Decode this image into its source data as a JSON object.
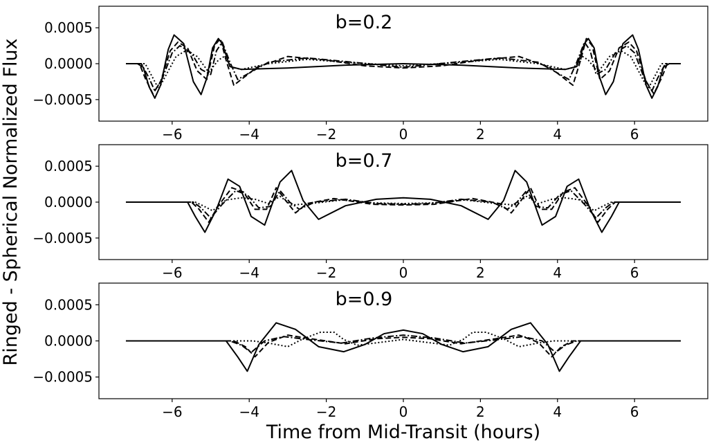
{
  "figure": {
    "ylabel": "Ringed - Spherical Normalized Flux",
    "xlabel": "Time from Mid-Transit (hours)"
  },
  "chart_data": [
    {
      "type": "line",
      "title": "b=0.2",
      "xlim": [
        -7.9,
        7.9
      ],
      "ylim": [
        -0.0008,
        0.0008
      ],
      "xticks": [
        "−6",
        "−4",
        "−2",
        "0",
        "2",
        "4",
        "6"
      ],
      "xtick_values": [
        -6,
        -4,
        -2,
        0,
        2,
        4,
        6
      ],
      "yticks": [
        "0.0005",
        "0.0000",
        "−0.0005"
      ],
      "ytick_values": [
        0.0005,
        0,
        -0.0005
      ],
      "line_color": "#000000",
      "series": [
        {
          "style": "solid",
          "x": [
            -7.2,
            -6.9,
            -6.75,
            -6.6,
            -6.45,
            -6.3,
            -6.1,
            -5.95,
            -5.7,
            -5.45,
            -5.25,
            -5.1,
            -4.95,
            -4.8,
            -4.7,
            -4.5,
            -4.2,
            -3.0,
            -1.5,
            0,
            1.5,
            3.0,
            4.2,
            4.5,
            4.7,
            4.8,
            4.95,
            5.1,
            5.25,
            5.45,
            5.7,
            5.95,
            6.1,
            6.3,
            6.45,
            6.6,
            6.75,
            6.9,
            7.2
          ],
          "y": [
            0,
            0,
            -5e-05,
            -0.00032,
            -0.00048,
            -0.0003,
            0.0002,
            0.0004,
            0.00028,
            -0.00025,
            -0.00043,
            -0.0002,
            0.00022,
            0.00035,
            0.00028,
            -4e-05,
            -8e-05,
            -6e-05,
            -2e-05,
            0,
            -2e-05,
            -6e-05,
            -8e-05,
            -4e-05,
            0.00028,
            0.00035,
            0.00022,
            -0.0002,
            -0.00043,
            -0.00025,
            0.00028,
            0.0004,
            0.0002,
            -0.0003,
            -0.00048,
            -0.00032,
            -5e-05,
            0,
            0
          ]
        },
        {
          "style": "dashed",
          "x": [
            -7.2,
            -6.85,
            -6.7,
            -6.5,
            -6.3,
            -6.05,
            -5.85,
            -5.6,
            -5.35,
            -5.1,
            -4.9,
            -4.75,
            -4.6,
            -4.4,
            -3.8,
            -3.0,
            -2.0,
            -1.0,
            0,
            1.0,
            2.0,
            3.0,
            3.8,
            4.4,
            4.6,
            4.75,
            4.9,
            5.1,
            5.35,
            5.6,
            5.85,
            6.05,
            6.3,
            6.5,
            6.7,
            6.85,
            7.2
          ],
          "y": [
            0,
            0,
            -0.0002,
            -0.00042,
            -0.00025,
            0.00018,
            0.0003,
            0.00022,
            -0.0001,
            -0.00022,
            0.00025,
            0.00035,
            5e-05,
            -0.0003,
            -5e-05,
            0.0001,
            5e-05,
            -3e-05,
            -6e-05,
            -3e-05,
            5e-05,
            0.0001,
            -5e-05,
            -0.0003,
            5e-05,
            0.00035,
            0.00025,
            -0.00022,
            -0.0001,
            0.00022,
            0.0003,
            0.00018,
            -0.00025,
            -0.00042,
            -0.0002,
            0,
            0
          ]
        },
        {
          "style": "dashdot",
          "x": [
            -7.2,
            -6.8,
            -6.6,
            -6.45,
            -6.25,
            -6.0,
            -5.8,
            -5.5,
            -5.25,
            -5.0,
            -4.85,
            -4.7,
            -4.5,
            -4.3,
            -3.5,
            -2.5,
            -1.5,
            0,
            1.5,
            2.5,
            3.5,
            4.3,
            4.5,
            4.7,
            4.85,
            5.0,
            5.25,
            5.5,
            5.8,
            6.0,
            6.25,
            6.45,
            6.6,
            6.8,
            7.2
          ],
          "y": [
            0,
            0,
            -0.0002,
            -0.00038,
            -0.0002,
            0.00015,
            0.00025,
            0.00015,
            -8e-05,
            -0.00015,
            0.00018,
            0.0003,
            2e-05,
            -0.00022,
            2e-05,
            8e-05,
            3e-05,
            -5e-05,
            3e-05,
            8e-05,
            2e-05,
            -0.00022,
            2e-05,
            0.0003,
            0.00018,
            -0.00015,
            -8e-05,
            0.00015,
            0.00025,
            0.00015,
            -0.0002,
            -0.00038,
            -0.0002,
            0,
            0
          ]
        },
        {
          "style": "dotted",
          "x": [
            -7.2,
            -6.7,
            -6.55,
            -6.35,
            -6.15,
            -5.9,
            -5.65,
            -5.35,
            -5.05,
            -4.8,
            -4.65,
            -4.45,
            -4.2,
            -3.5,
            -2.5,
            -1.5,
            0,
            1.5,
            2.5,
            3.5,
            4.2,
            4.45,
            4.65,
            4.8,
            5.05,
            5.35,
            5.65,
            5.9,
            6.15,
            6.35,
            6.55,
            6.7,
            7.2
          ],
          "y": [
            0,
            0,
            -0.00015,
            -0.00035,
            -0.00015,
            0.0001,
            0.00018,
            0.0001,
            -0.00012,
            5e-05,
            0.0001,
            -5e-05,
            -8e-05,
            0,
            6e-05,
            2e-05,
            -3e-05,
            2e-05,
            6e-05,
            0,
            -8e-05,
            -5e-05,
            0.0001,
            5e-05,
            -0.00012,
            0.0001,
            0.00018,
            0.0001,
            -0.00015,
            -0.00035,
            -0.00015,
            0,
            0
          ]
        }
      ]
    },
    {
      "type": "line",
      "title": "b=0.7",
      "xlim": [
        -7.9,
        7.9
      ],
      "ylim": [
        -0.0008,
        0.0008
      ],
      "xticks": [
        "−6",
        "−4",
        "−2",
        "0",
        "2",
        "4",
        "6"
      ],
      "xtick_values": [
        -6,
        -4,
        -2,
        0,
        2,
        4,
        6
      ],
      "yticks": [
        "0.0005",
        "0.0000",
        "−0.0005"
      ],
      "ytick_values": [
        0.0005,
        0,
        -0.0005
      ],
      "line_color": "#000000",
      "series": [
        {
          "style": "solid",
          "x": [
            -7.2,
            -5.6,
            -5.4,
            -5.15,
            -4.85,
            -4.55,
            -4.25,
            -3.95,
            -3.6,
            -3.2,
            -2.9,
            -2.6,
            -2.2,
            -1.5,
            -0.7,
            0,
            0.7,
            1.5,
            2.2,
            2.6,
            2.9,
            3.2,
            3.6,
            3.95,
            4.25,
            4.55,
            4.85,
            5.15,
            5.4,
            5.6,
            7.2
          ],
          "y": [
            0,
            0,
            -0.0002,
            -0.00042,
            -0.0001,
            0.00032,
            0.00022,
            -0.0002,
            -0.00032,
            0.00028,
            0.00044,
            2e-05,
            -0.00024,
            -5e-05,
            4e-05,
            6e-05,
            4e-05,
            -5e-05,
            -0.00024,
            2e-05,
            0.00044,
            0.00028,
            -0.00032,
            -0.0002,
            0.00022,
            0.00032,
            -0.0001,
            -0.00042,
            -0.0002,
            0,
            0
          ]
        },
        {
          "style": "dashed",
          "x": [
            -7.2,
            -5.5,
            -5.3,
            -5.05,
            -4.8,
            -4.45,
            -4.15,
            -3.85,
            -3.55,
            -3.3,
            -3.05,
            -2.8,
            -2.5,
            -1.8,
            -0.8,
            0,
            0.8,
            1.8,
            2.5,
            2.8,
            3.05,
            3.3,
            3.55,
            3.85,
            4.15,
            4.45,
            4.8,
            5.05,
            5.3,
            5.5,
            7.2
          ],
          "y": [
            0,
            0,
            -0.0001,
            -0.00028,
            -5e-05,
            0.0002,
            0.00014,
            -0.0001,
            -0.0001,
            0.0002,
            2e-05,
            -0.00015,
            -2e-05,
            5e-05,
            -3e-05,
            -4e-05,
            -3e-05,
            5e-05,
            -2e-05,
            -0.00015,
            2e-05,
            0.0002,
            -0.0001,
            -0.0001,
            0.00014,
            0.0002,
            -5e-05,
            -0.00028,
            -0.0001,
            0,
            0
          ]
        },
        {
          "style": "dashdot",
          "x": [
            -7.2,
            -5.45,
            -5.25,
            -5.0,
            -4.7,
            -4.35,
            -4.05,
            -3.75,
            -3.45,
            -3.2,
            -2.95,
            -2.7,
            -2.3,
            -1.5,
            -0.7,
            0,
            0.7,
            1.5,
            2.3,
            2.7,
            2.95,
            3.2,
            3.45,
            3.75,
            4.05,
            4.35,
            4.7,
            5.0,
            5.25,
            5.45,
            7.2
          ],
          "y": [
            0,
            0,
            -8e-05,
            -0.00022,
            -3e-05,
            0.00016,
            0.0001,
            -8e-05,
            -6e-05,
            0.00016,
            0,
            -0.0001,
            0,
            4e-05,
            -2e-05,
            -3e-05,
            -2e-05,
            4e-05,
            0,
            -0.0001,
            0,
            0.00016,
            -6e-05,
            -8e-05,
            0.0001,
            0.00016,
            -3e-05,
            -0.00022,
            -8e-05,
            0,
            0
          ]
        },
        {
          "style": "dotted",
          "x": [
            -7.2,
            -5.4,
            -5.2,
            -4.95,
            -4.6,
            -4.2,
            -3.85,
            -3.5,
            -3.2,
            -2.9,
            -2.4,
            -1.6,
            -0.8,
            0,
            0.8,
            1.6,
            2.4,
            2.9,
            3.2,
            3.5,
            3.85,
            4.2,
            4.6,
            4.95,
            5.2,
            5.4,
            7.2
          ],
          "y": [
            0,
            0,
            -5e-05,
            -0.00012,
            3e-05,
            6e-05,
            4e-05,
            -2e-05,
            8e-05,
            -4e-05,
            -2e-05,
            3e-05,
            -1e-05,
            -2e-05,
            -1e-05,
            3e-05,
            -2e-05,
            -4e-05,
            8e-05,
            -2e-05,
            4e-05,
            6e-05,
            3e-05,
            -0.00012,
            -5e-05,
            0,
            0
          ]
        }
      ]
    },
    {
      "type": "line",
      "title": "b=0.9",
      "xlim": [
        -7.9,
        7.9
      ],
      "ylim": [
        -0.0008,
        0.0008
      ],
      "xticks": [
        "−6",
        "−4",
        "−2",
        "0",
        "2",
        "4",
        "6"
      ],
      "xtick_values": [
        -6,
        -4,
        -2,
        0,
        2,
        4,
        6
      ],
      "yticks": [
        "0.0005",
        "0.0000",
        "−0.0005"
      ],
      "ytick_values": [
        0.0005,
        0,
        -0.0005
      ],
      "line_color": "#000000",
      "series": [
        {
          "style": "solid",
          "x": [
            -7.2,
            -4.6,
            -4.3,
            -4.05,
            -3.75,
            -3.3,
            -2.8,
            -2.2,
            -1.55,
            -1.0,
            -0.5,
            0,
            0.5,
            1.0,
            1.55,
            2.2,
            2.8,
            3.3,
            3.75,
            4.05,
            4.3,
            4.6,
            7.2
          ],
          "y": [
            0,
            0,
            -0.00022,
            -0.00042,
            -5e-05,
            0.00025,
            0.00016,
            -8e-05,
            -0.00015,
            -5e-05,
            0.0001,
            0.00015,
            0.0001,
            -5e-05,
            -0.00015,
            -8e-05,
            0.00016,
            0.00025,
            -5e-05,
            -0.00042,
            -0.00022,
            0,
            0
          ]
        },
        {
          "style": "dashed",
          "x": [
            -7.2,
            -4.4,
            -4.1,
            -3.85,
            -3.5,
            -3.0,
            -2.4,
            -1.5,
            -0.7,
            0,
            0.7,
            1.5,
            2.4,
            3.0,
            3.5,
            3.85,
            4.1,
            4.4,
            7.2
          ],
          "y": [
            0,
            0,
            -8e-05,
            -0.00022,
            -2e-05,
            8e-05,
            3e-05,
            -4e-05,
            3e-05,
            5e-05,
            3e-05,
            -4e-05,
            3e-05,
            8e-05,
            -2e-05,
            -0.00022,
            -8e-05,
            0,
            0
          ]
        },
        {
          "style": "dashdot",
          "x": [
            -7.2,
            -4.5,
            -4.2,
            -3.95,
            -3.6,
            -3.1,
            -2.5,
            -1.6,
            -0.8,
            0,
            0.8,
            1.6,
            2.5,
            3.1,
            3.6,
            3.95,
            4.2,
            4.5,
            7.2
          ],
          "y": [
            0,
            0,
            -6e-05,
            -0.00016,
            0,
            6e-05,
            2e-05,
            -3e-05,
            4e-05,
            8e-05,
            4e-05,
            -3e-05,
            2e-05,
            6e-05,
            0,
            -0.00016,
            -6e-05,
            0,
            0
          ]
        },
        {
          "style": "dotted",
          "x": [
            -7.2,
            -3.9,
            -3.5,
            -3.0,
            -2.6,
            -2.15,
            -1.8,
            -1.55,
            -1.2,
            -0.6,
            0,
            0.6,
            1.2,
            1.55,
            1.8,
            2.15,
            2.6,
            3.0,
            3.5,
            3.9,
            7.2
          ],
          "y": [
            0,
            0,
            -3e-05,
            -8e-05,
            3e-05,
            0.00012,
            0.00012,
            2e-05,
            -6e-05,
            -2e-05,
            2e-05,
            -2e-05,
            -6e-05,
            2e-05,
            0.00012,
            0.00012,
            3e-05,
            -8e-05,
            -3e-05,
            0,
            0
          ]
        }
      ]
    }
  ]
}
